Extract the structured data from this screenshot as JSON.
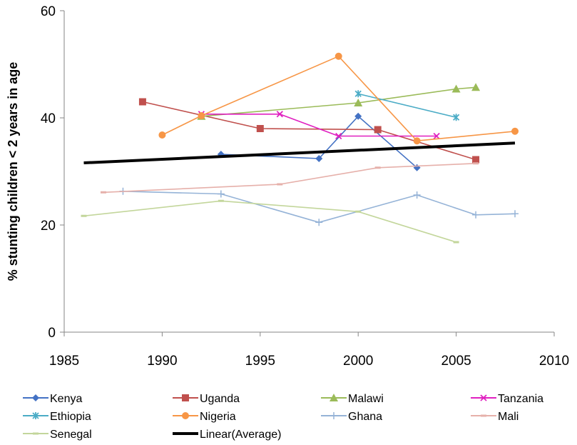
{
  "chart_data": {
    "type": "line",
    "title": "",
    "xlabel": "",
    "ylabel": "% stunting children < 2 years in age",
    "xlim": [
      1985,
      2010
    ],
    "ylim": [
      0,
      60
    ],
    "xticks": [
      1985,
      1990,
      1995,
      2000,
      2005,
      2010
    ],
    "yticks": [
      0,
      20,
      40,
      60
    ],
    "grid": false,
    "legend_position": "bottom",
    "series": [
      {
        "name": "Kenya",
        "color": "#4472C4",
        "marker": "diamond",
        "x": [
          1993,
          1998,
          2000,
          2003
        ],
        "y": [
          33.2,
          32.4,
          40.3,
          30.7
        ]
      },
      {
        "name": "Uganda",
        "color": "#C0504D",
        "marker": "square",
        "x": [
          1989,
          1995,
          2001,
          2006
        ],
        "y": [
          43.0,
          38.0,
          37.8,
          32.2
        ]
      },
      {
        "name": "Malawi",
        "color": "#9BBB59",
        "marker": "triangle",
        "x": [
          1992,
          2000,
          2005,
          2006
        ],
        "y": [
          40.3,
          42.8,
          45.4,
          45.7
        ]
      },
      {
        "name": "Tanzania",
        "color": "#E020C0",
        "marker": "x",
        "x": [
          1992,
          1996,
          1999,
          2004
        ],
        "y": [
          40.7,
          40.7,
          36.6,
          36.6
        ]
      },
      {
        "name": "Ethiopia",
        "color": "#4BACC6",
        "marker": "star",
        "x": [
          2000,
          2005
        ],
        "y": [
          44.5,
          40.1
        ]
      },
      {
        "name": "Nigeria",
        "color": "#F79646",
        "marker": "circle",
        "x": [
          1990,
          1992,
          1999,
          2003,
          2008
        ],
        "y": [
          36.8,
          40.4,
          51.5,
          35.7,
          37.5
        ]
      },
      {
        "name": "Ghana",
        "color": "#95B3D7",
        "marker": "plus",
        "x": [
          1988,
          1993,
          1998,
          2003,
          2006,
          2008
        ],
        "y": [
          26.3,
          25.8,
          20.5,
          25.6,
          21.9,
          22.1
        ]
      },
      {
        "name": "Mali",
        "color": "#E6B0AA",
        "marker": "dash",
        "x": [
          1987,
          1996,
          2001,
          2006
        ],
        "y": [
          26.1,
          27.6,
          30.7,
          31.5
        ]
      },
      {
        "name": "Senegal",
        "color": "#C3D69B",
        "marker": "dash",
        "x": [
          1986,
          1993,
          2000,
          2005
        ],
        "y": [
          21.7,
          24.5,
          22.5,
          16.8
        ]
      },
      {
        "name": "Linear(Average)",
        "color": "#000000",
        "marker": "none",
        "trend": true,
        "x": [
          1986,
          2008
        ],
        "y": [
          31.6,
          35.3
        ]
      }
    ]
  }
}
